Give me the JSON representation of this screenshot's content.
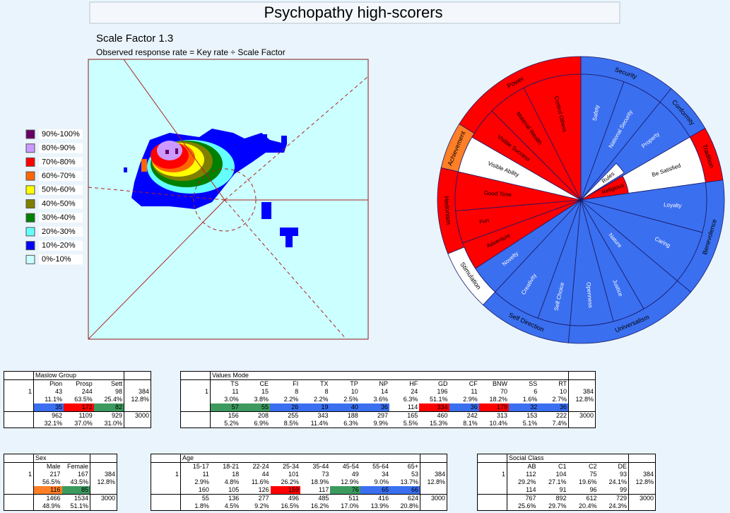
{
  "title": "Psychopathy high-scorers",
  "heatmap": {
    "scale_label": "Scale Factor 1.3",
    "subtitle": "Observed response rate = Key rate ÷ Scale Factor",
    "legend": [
      {
        "label": "90%-100%",
        "color": "#660066"
      },
      {
        "label": "80%-90%",
        "color": "#cc99ff"
      },
      {
        "label": "70%-80%",
        "color": "#ff0000"
      },
      {
        "label": "60%-70%",
        "color": "#ff6600"
      },
      {
        "label": "50%-60%",
        "color": "#ffff00"
      },
      {
        "label": "40%-50%",
        "color": "#808000"
      },
      {
        "label": "30%-40%",
        "color": "#008000"
      },
      {
        "label": "20%-30%",
        "color": "#66ffff"
      },
      {
        "label": "10%-20%",
        "color": "#0000ff"
      },
      {
        "label": "0%-10%",
        "color": "#ccffff"
      }
    ]
  },
  "wheel": {
    "outer": [
      {
        "label": "Security",
        "color": "#3a6ff0"
      },
      {
        "label": "Conformity",
        "color": "#3a6ff0"
      },
      {
        "label": "Tradition",
        "color": "#ff0000"
      },
      {
        "label": "Benevolence",
        "color": "#3a6ff0"
      },
      {
        "label": "Universalism",
        "color": "#3a6ff0"
      },
      {
        "label": "Self Direction",
        "color": "#3a6ff0"
      },
      {
        "label": "Stimulation",
        "color": "#ffffff"
      },
      {
        "label": "Hedonism",
        "color": "#ff0000"
      },
      {
        "label": "Achievement",
        "color": "#ff7f27"
      },
      {
        "label": "Power",
        "color": "#ff0000"
      }
    ],
    "inner": [
      {
        "label": "Safety",
        "color": "#3a6ff0"
      },
      {
        "label": "National Security",
        "color": "#3a6ff0"
      },
      {
        "label": "Property",
        "color": "#3a6ff0"
      },
      {
        "label": "Rules",
        "color": "#ffffff"
      },
      {
        "label": "Be Satisfied",
        "color": "#ffffff"
      },
      {
        "label": "Religious",
        "color": "#ff0000"
      },
      {
        "label": "Loyalty",
        "color": "#3a6ff0"
      },
      {
        "label": "Caring",
        "color": "#3a6ff0"
      },
      {
        "label": "Nature",
        "color": "#3a6ff0"
      },
      {
        "label": "Justice",
        "color": "#3a6ff0"
      },
      {
        "label": "Openness",
        "color": "#3a6ff0"
      },
      {
        "label": "Self Choice",
        "color": "#3a6ff0"
      },
      {
        "label": "Creativity",
        "color": "#3a6ff0"
      },
      {
        "label": "Novelty",
        "color": "#3a6ff0"
      },
      {
        "label": "Adventure",
        "color": "#ff0000"
      },
      {
        "label": "Fun",
        "color": "#ff0000"
      },
      {
        "label": "Good Time",
        "color": "#ff0000"
      },
      {
        "label": "Visible Ability",
        "color": "#ffffff"
      },
      {
        "label": "Visible Success",
        "color": "#ff0000"
      },
      {
        "label": "Material Wealth",
        "color": "#ff0000"
      },
      {
        "label": "Control Others",
        "color": "#ff0000"
      }
    ]
  },
  "tables": [
    {
      "title": "Maslow Group",
      "columns": [
        "Pion",
        "Prosp",
        "Sett"
      ],
      "row_label": "1",
      "counts": [
        43,
        244,
        98
      ],
      "count_total": 384,
      "pcts": [
        "11.1%",
        "63.5%",
        "25.4%"
      ],
      "pct_total": "12.8%",
      "index": [
        35,
        172,
        82
      ],
      "index_colors": [
        "#3a6ff0",
        "#ff0000",
        "#3c9a5f"
      ],
      "totals": [
        962,
        1109,
        929
      ],
      "grand_total": 3000,
      "total_pcts": [
        "32.1%",
        "37.0%",
        "31.0%"
      ]
    },
    {
      "title": "Values Mode",
      "columns": [
        "TS",
        "CE",
        "FI",
        "TX",
        "TP",
        "NP",
        "HF",
        "GD",
        "CF",
        "BNW",
        "SS",
        "RT"
      ],
      "row_label": "1",
      "counts": [
        11,
        15,
        8,
        8,
        10,
        14,
        24,
        196,
        11,
        70,
        6,
        10
      ],
      "count_total": 384,
      "pcts": [
        "3.0%",
        "3.8%",
        "2.2%",
        "2.2%",
        "2.5%",
        "3.6%",
        "6.3%",
        "51.1%",
        "2.9%",
        "18.2%",
        "1.6%",
        "2.7%"
      ],
      "pct_total": "12.8%",
      "index": [
        57,
        55,
        26,
        19,
        40,
        36,
        114,
        334,
        36,
        179,
        32,
        36
      ],
      "index_colors": [
        "#3c9a5f",
        "#3c9a5f",
        "#3a6ff0",
        "#3a6ff0",
        "#3a6ff0",
        "#3a6ff0",
        null,
        "#ff0000",
        "#3a6ff0",
        "#ff0000",
        "#3a6ff0",
        "#3a6ff0"
      ],
      "totals": [
        156,
        208,
        255,
        343,
        188,
        297,
        165,
        460,
        242,
        313,
        153,
        222
      ],
      "grand_total": 3000,
      "total_pcts": [
        "5.2%",
        "6.9%",
        "8.5%",
        "11.4%",
        "6.3%",
        "9.9%",
        "5.5%",
        "15.3%",
        "8.1%",
        "10.4%",
        "5.1%",
        "7.4%"
      ]
    },
    {
      "title": "Sex",
      "columns": [
        "Male",
        "Female"
      ],
      "row_label": "1",
      "counts": [
        217,
        167
      ],
      "count_total": 384,
      "pcts": [
        "56.5%",
        "43.5%"
      ],
      "pct_total": "12.8%",
      "index": [
        116,
        85
      ],
      "index_colors": [
        "#ff7f27",
        "#3c9a5f"
      ],
      "totals": [
        1466,
        1534
      ],
      "grand_total": 3000,
      "total_pcts": [
        "48.9%",
        "51.1%"
      ]
    },
    {
      "title": "Age",
      "columns": [
        "15-17",
        "18-21",
        "22-24",
        "25-34",
        "35-44",
        "45-54",
        "55-64",
        "65+"
      ],
      "row_label": "1",
      "counts": [
        11,
        18,
        44,
        101,
        73,
        49,
        34,
        53
      ],
      "count_total": 384,
      "pcts": [
        "2.9%",
        "4.8%",
        "11.6%",
        "26.2%",
        "18.9%",
        "12.9%",
        "9.0%",
        "13.7%"
      ],
      "pct_total": "12.8%",
      "index": [
        160,
        105,
        126,
        159,
        117,
        76,
        65,
        66
      ],
      "index_colors": [
        null,
        null,
        null,
        "#ff0000",
        null,
        "#3c9a5f",
        "#3a6ff0",
        "#3a6ff0"
      ],
      "totals": [
        55,
        136,
        277,
        496,
        485,
        511,
        416,
        624
      ],
      "grand_total": 3000,
      "total_pcts": [
        "1.8%",
        "4.5%",
        "9.2%",
        "16.5%",
        "16.2%",
        "17.0%",
        "13.9%",
        "20.8%"
      ]
    },
    {
      "title": "Social Class",
      "columns": [
        "AB",
        "C1",
        "C2",
        "DE"
      ],
      "row_label": "1",
      "counts": [
        112,
        104,
        75,
        93
      ],
      "count_total": 384,
      "pcts": [
        "29.2%",
        "27.1%",
        "19.6%",
        "24.1%"
      ],
      "pct_total": "12.8%",
      "index": [
        114,
        91,
        96,
        99
      ],
      "index_colors": [
        null,
        null,
        null,
        null
      ],
      "totals": [
        767,
        892,
        612,
        729
      ],
      "grand_total": 3000,
      "total_pcts": [
        "25.6%",
        "29.7%",
        "20.4%",
        "24.3%"
      ]
    }
  ]
}
